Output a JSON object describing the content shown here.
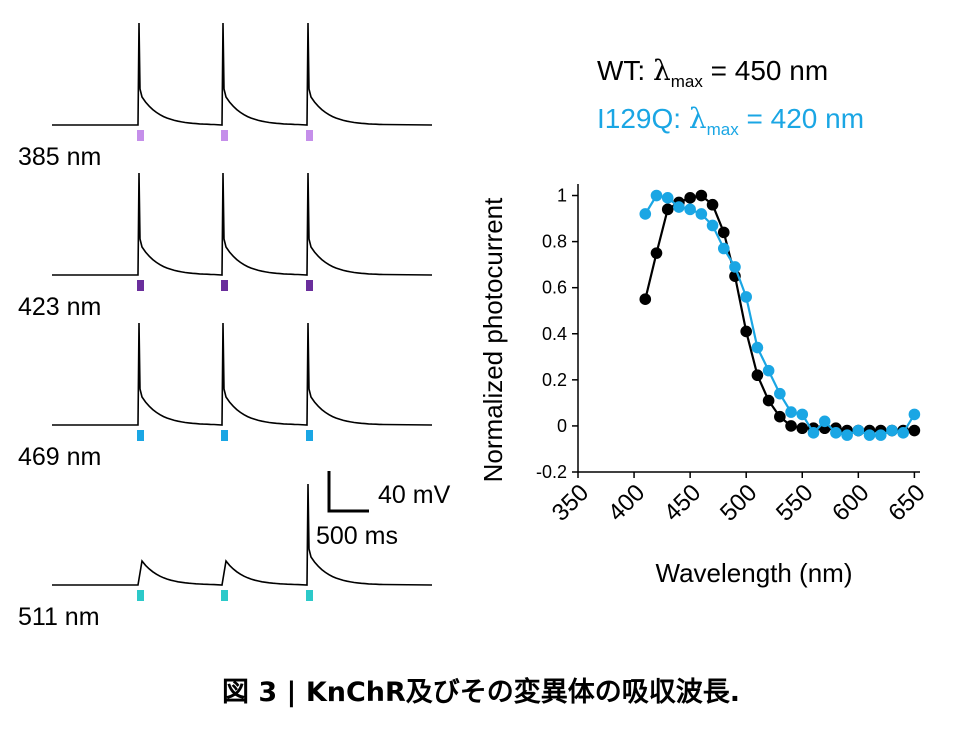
{
  "traces": {
    "panels": [
      {
        "label": "385 nm",
        "color": "#c58fea",
        "spikes": [
          true,
          true,
          true
        ]
      },
      {
        "label": "423 nm",
        "color": "#6a2e9c",
        "spikes": [
          true,
          true,
          true
        ]
      },
      {
        "label": "469 nm",
        "color": "#1aa6e4",
        "spikes": [
          true,
          true,
          true
        ]
      },
      {
        "label": "511 nm",
        "color": "#2cc9c9",
        "spikes": [
          false,
          false,
          true
        ]
      }
    ],
    "scalebar": {
      "voltage": "40 mV",
      "time": "500 ms"
    }
  },
  "legend": {
    "wt": {
      "prefix": "WT: ",
      "lambda": "λ",
      "sub": "max",
      "suffix": " = 450 nm",
      "color": "#000000"
    },
    "mut": {
      "prefix": "I129Q: ",
      "lambda": "λ",
      "sub": "max",
      "suffix": " = 420 nm",
      "color": "#1aa6e4"
    }
  },
  "chart_data": {
    "type": "line",
    "title": "",
    "xlabel": "Wavelength (nm)",
    "ylabel": "Normalized photocurrent",
    "xlim": [
      350,
      655
    ],
    "ylim": [
      -0.2,
      1.05
    ],
    "xticks": [
      350,
      400,
      450,
      500,
      550,
      600,
      650
    ],
    "xtick_labels": [
      "350",
      "400",
      "450",
      "500",
      "550",
      "600",
      "650"
    ],
    "yticks": [
      -0.2,
      0,
      0.2,
      0.4,
      0.6,
      0.8,
      1
    ],
    "ytick_labels": [
      "-0.2",
      "0",
      "0.2",
      "0.4",
      "0.6",
      "0.8",
      "1"
    ],
    "series": [
      {
        "name": "WT",
        "color": "#000000",
        "x": [
          410,
          420,
          430,
          440,
          450,
          460,
          470,
          480,
          490,
          500,
          510,
          520,
          530,
          540,
          550,
          560,
          570,
          580,
          590,
          600,
          610,
          620,
          630,
          640,
          650
        ],
        "y": [
          0.55,
          0.75,
          0.94,
          0.97,
          0.99,
          1.0,
          0.96,
          0.84,
          0.65,
          0.41,
          0.22,
          0.11,
          0.04,
          0.0,
          -0.01,
          -0.01,
          -0.01,
          -0.01,
          -0.02,
          -0.02,
          -0.02,
          -0.02,
          -0.02,
          -0.02,
          -0.02
        ]
      },
      {
        "name": "I129Q",
        "color": "#1aa6e4",
        "x": [
          410,
          420,
          430,
          440,
          450,
          460,
          470,
          480,
          490,
          500,
          510,
          520,
          530,
          540,
          550,
          560,
          570,
          580,
          590,
          600,
          610,
          620,
          630,
          640,
          650
        ],
        "y": [
          0.92,
          1.0,
          0.99,
          0.95,
          0.94,
          0.92,
          0.87,
          0.77,
          0.69,
          0.56,
          0.34,
          0.24,
          0.14,
          0.06,
          0.05,
          -0.03,
          0.02,
          -0.03,
          -0.04,
          -0.02,
          -0.04,
          -0.04,
          -0.02,
          -0.03,
          0.05
        ]
      }
    ]
  },
  "caption": {
    "fig": "図 3 |",
    "text": "KnChR及びその変異体の吸収波長."
  }
}
